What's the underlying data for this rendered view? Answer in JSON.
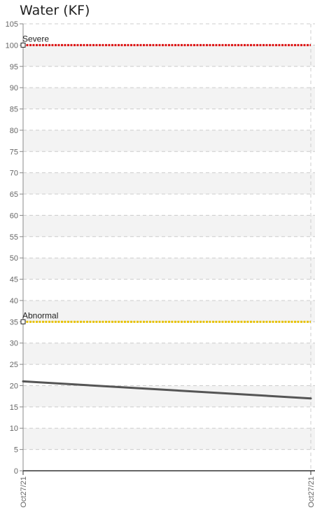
{
  "chart_data": {
    "type": "line",
    "title": "Water (KF)",
    "xlabel": "",
    "ylabel": "",
    "x_tick_labels": [
      "Oct27/21",
      "Oct27/21"
    ],
    "ylim": [
      0,
      105
    ],
    "y_ticks": [
      0,
      5,
      10,
      15,
      20,
      25,
      30,
      35,
      40,
      45,
      50,
      55,
      60,
      65,
      70,
      75,
      80,
      85,
      90,
      95,
      100,
      105
    ],
    "y_tick_labels": [
      "0",
      "5",
      "10",
      "15",
      "20",
      "25",
      "30",
      "35",
      "40",
      "45",
      "50",
      "55",
      "60",
      "65",
      "70",
      "75",
      "80",
      "85",
      "90",
      "95",
      "100",
      "105"
    ],
    "grid": true,
    "series": [
      {
        "values": [
          21,
          17
        ],
        "color": "#555555"
      }
    ],
    "thresholds": [
      {
        "label": "Severe",
        "value": 100,
        "color": "#dd1111"
      },
      {
        "label": "Abnormal",
        "value": 35,
        "color": "#e8c200"
      }
    ]
  }
}
